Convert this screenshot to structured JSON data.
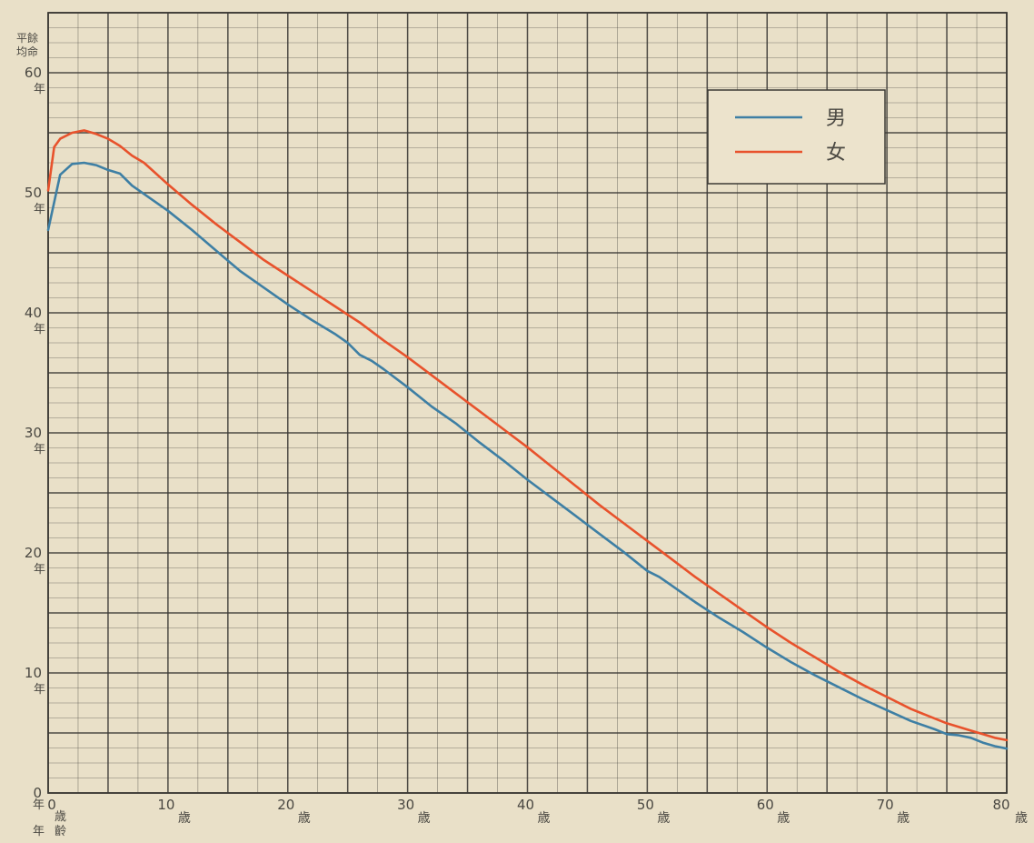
{
  "chart_data": {
    "type": "line",
    "title": "",
    "xlabel": "",
    "ylabel": "",
    "y_axis_header": [
      "平餘",
      "均命"
    ],
    "y_unit": "年",
    "x_unit": "歳",
    "x_origin_label": [
      "歳",
      "齡"
    ],
    "x_origin_unit_label": "年",
    "xlim": [
      0,
      80
    ],
    "ylim": [
      0,
      60
    ],
    "x_ticks": [
      0,
      10,
      20,
      30,
      40,
      50,
      60,
      70,
      80
    ],
    "y_ticks": [
      0,
      10,
      20,
      30,
      40,
      50,
      60
    ],
    "grid": true,
    "legend_placement": "top-right",
    "colors": {
      "male": "#3e7fa4",
      "female": "#e8522c",
      "grid": "#3c3a35",
      "background": "#e9e0c8"
    },
    "series": [
      {
        "name": "男",
        "x": [
          0,
          1,
          2,
          3,
          4,
          5,
          6,
          7,
          8,
          9,
          10,
          12,
          14,
          16,
          18,
          20,
          22,
          24,
          25,
          26,
          27,
          28,
          30,
          32,
          34,
          36,
          38,
          40,
          42,
          44,
          46,
          48,
          50,
          51,
          52,
          54,
          56,
          58,
          60,
          62,
          64,
          66,
          68,
          70,
          72,
          74,
          75,
          76,
          77,
          78,
          79,
          80
        ],
        "values": [
          46.9,
          51.5,
          52.4,
          52.5,
          52.3,
          51.9,
          51.6,
          50.6,
          49.9,
          49.2,
          48.5,
          46.9,
          45.2,
          43.5,
          42.1,
          40.7,
          39.4,
          38.2,
          37.5,
          36.5,
          36.0,
          35.3,
          33.8,
          32.2,
          30.8,
          29.2,
          27.7,
          26.1,
          24.6,
          23.1,
          21.6,
          20.1,
          18.5,
          18.0,
          17.3,
          15.9,
          14.6,
          13.4,
          12.1,
          10.9,
          9.8,
          8.8,
          7.8,
          6.9,
          6.0,
          5.3,
          4.9,
          4.8,
          4.6,
          4.2,
          3.9,
          3.7
        ]
      },
      {
        "name": "女",
        "x": [
          0,
          0.5,
          1,
          2,
          3,
          4,
          5,
          6,
          7,
          8,
          9,
          10,
          12,
          14,
          16,
          18,
          20,
          22,
          24,
          26,
          28,
          30,
          32,
          34,
          36,
          38,
          40,
          42,
          44,
          46,
          48,
          50,
          52,
          54,
          56,
          58,
          60,
          62,
          64,
          66,
          68,
          70,
          72,
          74,
          75,
          76,
          77,
          78,
          79,
          80
        ],
        "values": [
          50.2,
          53.8,
          54.5,
          55.0,
          55.2,
          54.9,
          54.5,
          53.9,
          53.1,
          52.5,
          51.6,
          50.7,
          49.0,
          47.4,
          45.9,
          44.4,
          43.1,
          41.8,
          40.5,
          39.2,
          37.7,
          36.3,
          34.8,
          33.3,
          31.8,
          30.3,
          28.8,
          27.2,
          25.6,
          24.0,
          22.5,
          21.0,
          19.5,
          18.0,
          16.6,
          15.2,
          13.8,
          12.5,
          11.3,
          10.1,
          9.0,
          8.0,
          7.0,
          6.2,
          5.8,
          5.5,
          5.2,
          4.9,
          4.6,
          4.4
        ]
      }
    ]
  }
}
